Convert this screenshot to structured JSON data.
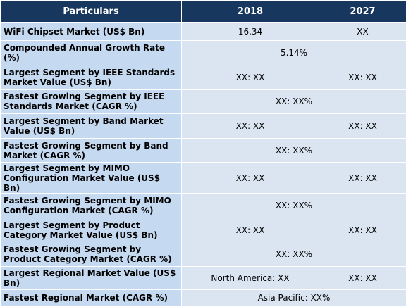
{
  "header": {
    "particulars": "Particulars",
    "col_2018": "2018",
    "col_2027": "2027"
  },
  "rows": [
    {
      "label": "WiFi Chipset Market (US$ Bn)",
      "v2018": "16.34",
      "v2027": "XX"
    },
    {
      "label": "Compounded Annual Growth Rate (%)",
      "value": "5.14%"
    },
    {
      "label": "Largest Segment by IEEE Standards Market Value (US$ Bn)",
      "v2018": "XX: XX",
      "v2027": "XX: XX"
    },
    {
      "label": "Fastest Growing Segment by IEEE Standards Market (CAGR %)",
      "value": "XX: XX%"
    },
    {
      "label": "Largest Segment by Band Market Value (US$ Bn)",
      "v2018": "XX: XX",
      "v2027": "XX: XX"
    },
    {
      "label": "Fastest Growing Segment by Band Market (CAGR %)",
      "value": "XX: XX%"
    },
    {
      "label": "Largest Segment by MIMO Configuration Market Value (US$ Bn)",
      "v2018": "XX: XX",
      "v2027": "XX: XX"
    },
    {
      "label": "Fastest Growing Segment by MIMO Configuration Market (CAGR %)",
      "value": "XX: XX%"
    },
    {
      "label": "Largest Segment by Product Category Market Value (US$ Bn)",
      "v2018": "XX: XX",
      "v2027": "XX: XX"
    },
    {
      "label": "Fastest Growing Segment by Product Category Market (CAGR %)",
      "value": "XX: XX%"
    },
    {
      "label": "Largest Regional Market Value (US$ Bn)",
      "v2018": "North America: XX",
      "v2027": "XX: XX"
    },
    {
      "label": "Fastest Regional Market (CAGR %)",
      "value": "Asia Pacific: XX%"
    }
  ]
}
